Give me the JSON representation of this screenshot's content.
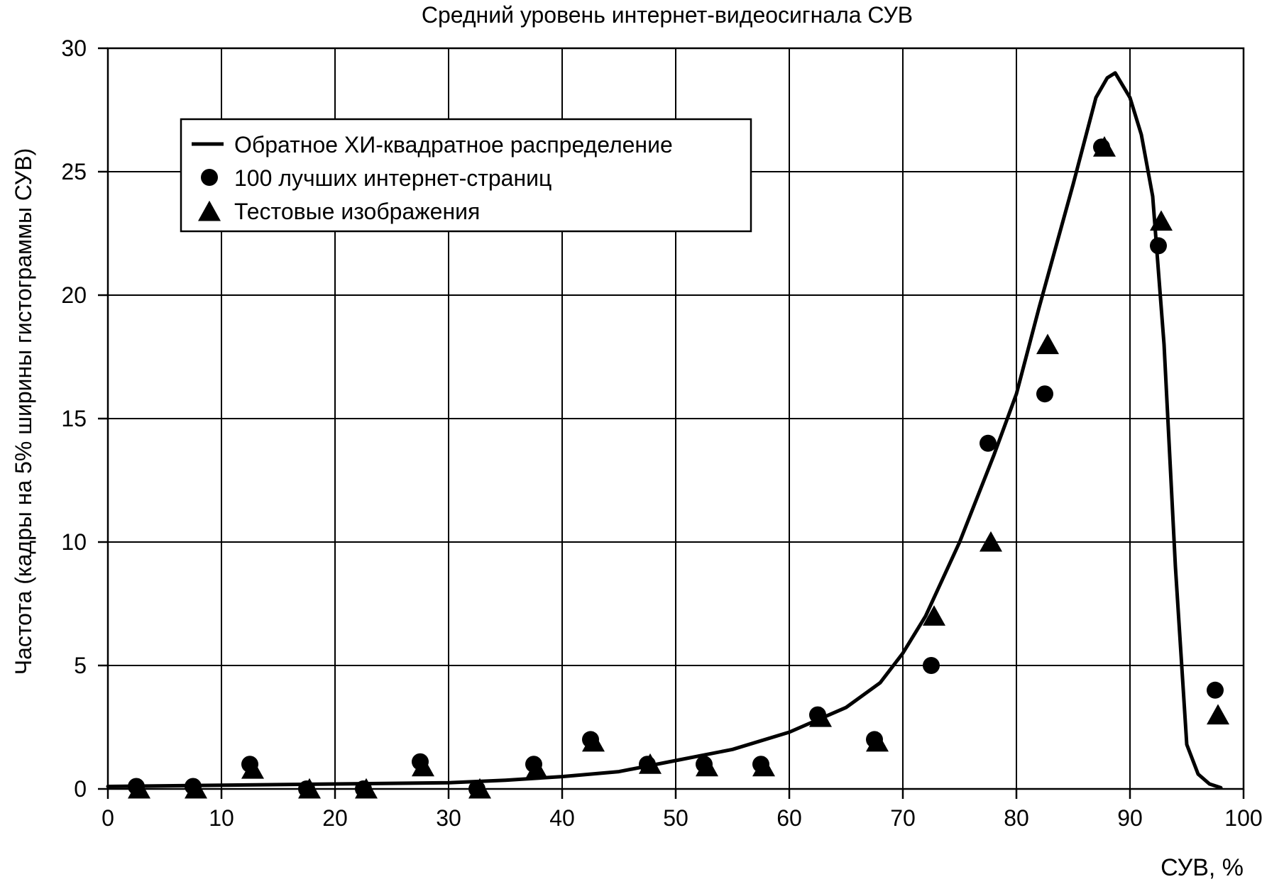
{
  "chart_data": {
    "type": "line",
    "title": "Средний уровень интернет-видеосигнала СУВ",
    "xlabel": "СУВ, %",
    "ylabel": "Частота (кадры на 5% ширины гистограммы СУВ)",
    "xlim": [
      0,
      100
    ],
    "ylim": [
      0,
      30
    ],
    "x_ticks": [
      0,
      10,
      20,
      30,
      40,
      50,
      60,
      70,
      80,
      90,
      100
    ],
    "y_ticks": [
      0,
      5,
      10,
      15,
      20,
      25,
      30
    ],
    "grid": true,
    "legend_position": "upper-left",
    "series": [
      {
        "name": "Обратное ХИ-квадратное распределение",
        "marker": "line",
        "color": "#000000",
        "points": [
          [
            0,
            0.1
          ],
          [
            10,
            0.15
          ],
          [
            20,
            0.2
          ],
          [
            30,
            0.25
          ],
          [
            35,
            0.35
          ],
          [
            40,
            0.5
          ],
          [
            45,
            0.7
          ],
          [
            50,
            1.15
          ],
          [
            55,
            1.6
          ],
          [
            60,
            2.3
          ],
          [
            65,
            3.3
          ],
          [
            68,
            4.3
          ],
          [
            70,
            5.5
          ],
          [
            72,
            7.0
          ],
          [
            75,
            10.0
          ],
          [
            78,
            13.5
          ],
          [
            80,
            16.0
          ],
          [
            82,
            19.5
          ],
          [
            85,
            24.5
          ],
          [
            87,
            28.0
          ],
          [
            88,
            28.8
          ],
          [
            88.7,
            29.0
          ],
          [
            90,
            28.0
          ],
          [
            91,
            26.5
          ],
          [
            92,
            24.0
          ],
          [
            93,
            18.0
          ],
          [
            94,
            9.0
          ],
          [
            95,
            1.8
          ],
          [
            96,
            0.6
          ],
          [
            97,
            0.2
          ],
          [
            98,
            0.05
          ]
        ]
      },
      {
        "name": "100 лучших интернет-страниц",
        "marker": "circle",
        "color": "#000000",
        "points": [
          [
            2.5,
            0.1
          ],
          [
            7.5,
            0.1
          ],
          [
            12.5,
            1.0
          ],
          [
            17.5,
            0.0
          ],
          [
            22.5,
            0.0
          ],
          [
            27.5,
            1.1
          ],
          [
            32.5,
            0.0
          ],
          [
            37.5,
            1.0
          ],
          [
            42.5,
            2.0
          ],
          [
            47.5,
            1.0
          ],
          [
            52.5,
            1.0
          ],
          [
            57.5,
            1.0
          ],
          [
            62.5,
            3.0
          ],
          [
            67.5,
            2.0
          ],
          [
            72.5,
            5.0
          ],
          [
            77.5,
            14.0
          ],
          [
            82.5,
            16.0
          ],
          [
            87.5,
            26.0
          ],
          [
            92.5,
            22.0
          ],
          [
            97.5,
            4.0
          ]
        ]
      },
      {
        "name": "Тестовые изображения",
        "marker": "triangle",
        "color": "#000000",
        "points": [
          [
            2.5,
            0.0
          ],
          [
            7.5,
            0.0
          ],
          [
            12.5,
            0.8
          ],
          [
            17.5,
            0.0
          ],
          [
            22.5,
            0.0
          ],
          [
            27.5,
            0.9
          ],
          [
            32.5,
            0.0
          ],
          [
            37.5,
            0.8
          ],
          [
            42.5,
            1.9
          ],
          [
            47.5,
            1.0
          ],
          [
            52.5,
            0.9
          ],
          [
            57.5,
            0.9
          ],
          [
            62.5,
            2.9
          ],
          [
            67.5,
            1.9
          ],
          [
            72.5,
            7.0
          ],
          [
            77.5,
            10.0
          ],
          [
            82.5,
            18.0
          ],
          [
            87.5,
            26.0
          ],
          [
            92.5,
            23.0
          ],
          [
            97.5,
            3.0
          ]
        ]
      }
    ]
  }
}
